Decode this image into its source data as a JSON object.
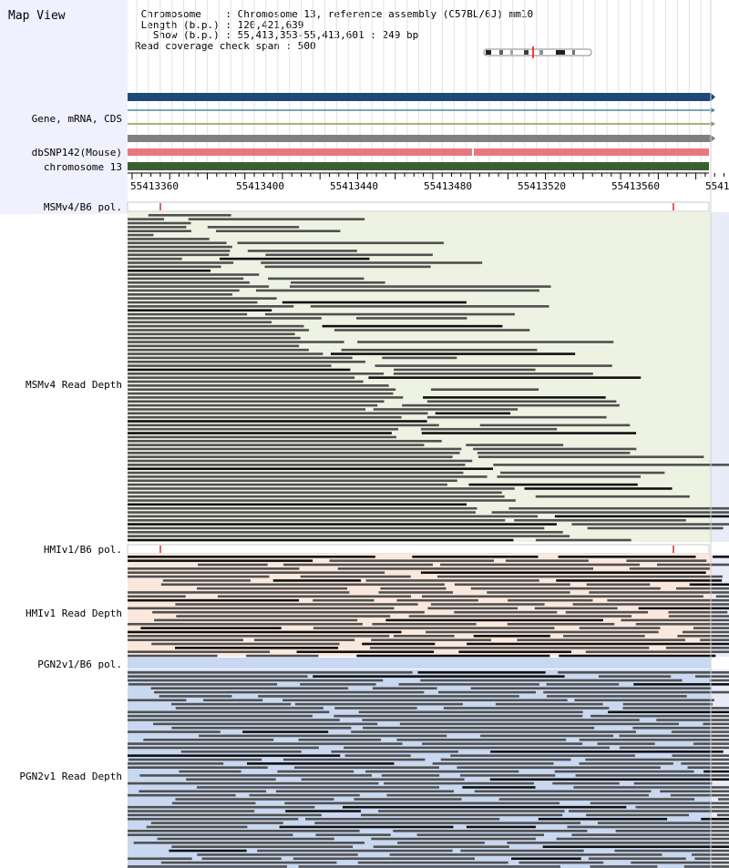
{
  "map_title": "Map View",
  "header": {
    "lines": [
      " Chromosome    : Chromosome 13, reference assembly (C57BL/6J) mm10",
      " Length (b.p.) : 120,421,639",
      "   Show (b.p.) : 55,413,353-55,413,601 : 249 bp",
      "Read coverage check span : 500"
    ]
  },
  "tracks": {
    "gene": "Gene, mRNA, CDS",
    "dbsnp": "dbSNP142(Mouse)",
    "chromosome": "chromosome 13",
    "msm_pol": "MSMv4/B6 pol.",
    "msm_depth": "MSMv4 Read Depth",
    "hmi_pol": "HMIv1/B6 pol.",
    "hmi_depth": "HMIv1 Read Depth",
    "pgn_pol": "PGN2v1/B6 pol.",
    "pgn_depth": "PGN2v1 Read Depth"
  },
  "ruler": {
    "ticks": [
      "55413360",
      "55413400",
      "55413440",
      "55413480",
      "55413520",
      "55413560",
      "5541"
    ]
  },
  "colors": {
    "gene_bar": "#1e4a7a",
    "snp_bar": "#e87880",
    "chrom_bar": "#3a6030",
    "msm_bg": "#eef2e2",
    "hmi_bg": "#fbe8dc",
    "pgn_bg": "#c8d8f0",
    "read": "#505050",
    "read_dark": "#101010",
    "variant_mark": "#cc3030"
  }
}
